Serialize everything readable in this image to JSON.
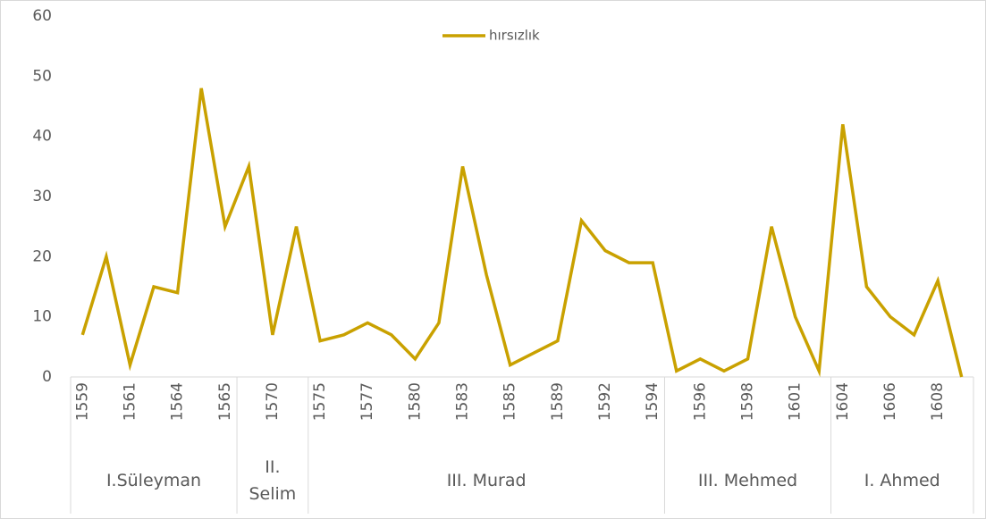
{
  "chart_data": {
    "type": "line",
    "categories": [
      "1559",
      null,
      "1561",
      null,
      "1564",
      null,
      "1565",
      null,
      "1570",
      null,
      "1575",
      null,
      "1577",
      null,
      "1580",
      null,
      "1583",
      null,
      "1585",
      null,
      "1589",
      null,
      "1592",
      null,
      "1594",
      null,
      "1596",
      null,
      "1598",
      null,
      "1601",
      null,
      "1604",
      null,
      "1606",
      null,
      "1608",
      null
    ],
    "groups": [
      {
        "label": "I.Süleyman",
        "count": 7
      },
      {
        "label": "II. Selim",
        "count": 3
      },
      {
        "label": "III. Murad",
        "count": 15
      },
      {
        "label": "III. Mehmed",
        "count": 7
      },
      {
        "label": "I. Ahmed",
        "count": 6
      }
    ],
    "series": [
      {
        "name": "hırsızlık",
        "color": "#c9a100",
        "values": [
          7,
          20,
          2,
          15,
          14,
          48,
          25,
          35,
          7,
          25,
          6,
          7,
          9,
          7,
          3,
          9,
          35,
          17,
          2,
          4,
          6,
          26,
          21,
          19,
          19,
          1,
          3,
          1,
          3,
          25,
          10,
          1,
          42,
          15,
          10,
          7,
          16,
          0
        ]
      }
    ],
    "ylim": [
      0,
      60
    ],
    "yticks": [
      0,
      10,
      20,
      30,
      40,
      50,
      60
    ],
    "legend": "top"
  }
}
